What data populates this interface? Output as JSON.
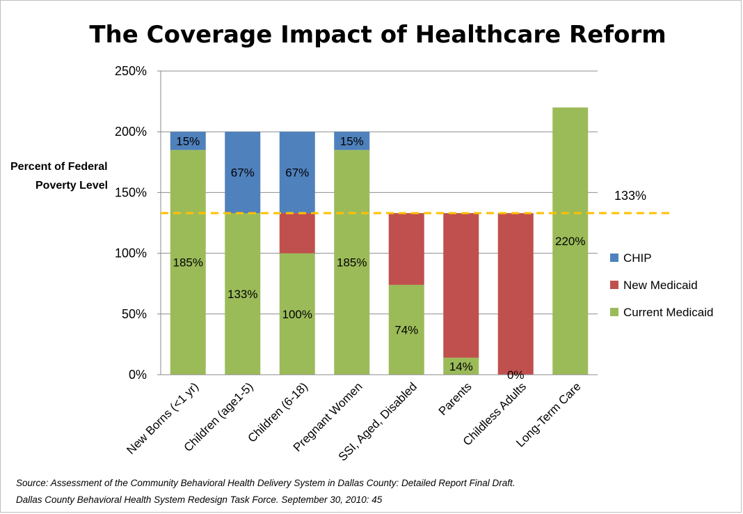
{
  "chart_data": {
    "type": "bar",
    "stacked": true,
    "title": "The Coverage Impact of Healthcare Reform",
    "ylabel": [
      "Percent of Federal",
      "Poverty Level"
    ],
    "xlabel": "",
    "ylim": [
      0,
      250
    ],
    "yticks": [
      "0%",
      "50%",
      "100%",
      "150%",
      "200%",
      "250%"
    ],
    "grid": true,
    "legend_position": "right",
    "categories": [
      "New Borns (<1 yr)",
      "Children (age1-5)",
      "Children (6-18)",
      "Pregnant Women",
      "SSI, Aged, Disabled",
      "Parents",
      "Childless Adults",
      "Long-Term Care"
    ],
    "series": [
      {
        "name": "Current Medicaid",
        "color": "#9bbb59",
        "values": [
          185,
          133,
          100,
          185,
          74,
          14,
          0,
          220
        ],
        "labels": [
          "185%",
          "133%",
          "100%",
          "185%",
          "74%",
          "14%",
          "0%",
          "220%"
        ]
      },
      {
        "name": "New Medicaid",
        "color": "#c0504d",
        "values": [
          0,
          0,
          33,
          0,
          59,
          119,
          133,
          0
        ],
        "labels": [
          "",
          "",
          "",
          "",
          "",
          "",
          "",
          ""
        ]
      },
      {
        "name": "CHIP",
        "color": "#4f81bd",
        "values": [
          15,
          67,
          67,
          15,
          0,
          0,
          0,
          0
        ],
        "labels": [
          "15%",
          "67%",
          "67%",
          "15%",
          "",
          "",
          "",
          ""
        ]
      }
    ],
    "reference_line": {
      "value": 133,
      "label": "133%",
      "color": "#ffc000"
    },
    "legend": [
      "CHIP",
      "New Medicaid",
      "Current Medicaid"
    ],
    "source_lines": [
      "Source: Assessment of the Community Behavioral Health Delivery System in Dallas County: Detailed Report Final Draft.",
      "Dallas County Behavioral Health System Redesign Task Force. September 30, 2010: 45"
    ]
  }
}
